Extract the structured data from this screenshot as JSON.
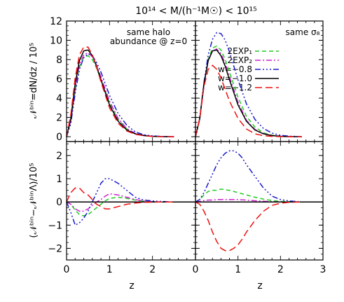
{
  "figure": {
    "title": "10¹⁴ < M/(h⁻¹M☉) < 10¹⁵",
    "xlabel": "z",
    "ylabel_top": "𝒩ᵇⁱⁿ=dN/dz / 10⁵",
    "ylabel_bottom": "(𝒩ᵇⁱⁿ−𝒩ᵇⁱⁿΛ)/10⁵",
    "left_annotation_line1": "same halo",
    "left_annotation_line2": "abundance @ z=0",
    "right_annotation": "same σ₈"
  },
  "legend": [
    {
      "name": "2EXP₁",
      "color": "#22cc22",
      "dash": "6,4"
    },
    {
      "name": "2EXP₂",
      "color": "#cc22cc",
      "dash": "8,3,2,3"
    },
    {
      "name": "w=−0.8",
      "color": "#1a1acc",
      "dash": "8,3,2,3,2,3,2,3"
    },
    {
      "name": "w=−1.0",
      "color": "#000000",
      "dash": ""
    },
    {
      "name": "w=−1.2",
      "color": "#ee1111",
      "dash": "10,5"
    }
  ],
  "chart_data": [
    {
      "type": "line",
      "title": "same halo abundance @ z=0",
      "ylabel": "𝒩ᵇⁱⁿ=dN/dz / 10⁵",
      "xlim": [
        0,
        3
      ],
      "ylim": [
        -0.5,
        12
      ],
      "x_ticks": [
        0,
        1,
        2
      ],
      "y_ticks": [
        0,
        2,
        4,
        6,
        8,
        10,
        12
      ],
      "series": [
        {
          "name": "2EXP₁",
          "x": [
            0,
            0.1,
            0.2,
            0.3,
            0.4,
            0.5,
            0.6,
            0.7,
            0.8,
            1.0,
            1.2,
            1.4,
            1.6,
            1.8,
            2.0,
            2.2,
            2.5
          ],
          "y": [
            0,
            1.6,
            4.8,
            7.2,
            8.2,
            8.4,
            8.0,
            7.1,
            5.9,
            3.5,
            1.8,
            0.8,
            0.35,
            0.15,
            0.05,
            0.02,
            0
          ]
        },
        {
          "name": "2EXP₂",
          "x": [
            0,
            0.1,
            0.2,
            0.3,
            0.4,
            0.5,
            0.6,
            0.7,
            0.8,
            1.0,
            1.2,
            1.4,
            1.6,
            1.8,
            2.0,
            2.2,
            2.5
          ],
          "y": [
            0,
            1.7,
            5.0,
            7.5,
            8.5,
            8.7,
            8.3,
            7.4,
            6.2,
            3.7,
            1.9,
            0.85,
            0.35,
            0.15,
            0.05,
            0.02,
            0
          ]
        },
        {
          "name": "w=−0.8",
          "x": [
            0,
            0.1,
            0.2,
            0.3,
            0.4,
            0.5,
            0.6,
            0.7,
            0.8,
            1.0,
            1.2,
            1.4,
            1.6,
            1.8,
            2.0,
            2.2,
            2.5
          ],
          "y": [
            0,
            1.4,
            4.5,
            7.0,
            8.2,
            8.6,
            8.4,
            7.7,
            6.7,
            4.3,
            2.4,
            1.2,
            0.5,
            0.2,
            0.08,
            0.03,
            0
          ]
        },
        {
          "name": "w=−1.0",
          "x": [
            0,
            0.1,
            0.2,
            0.3,
            0.4,
            0.5,
            0.6,
            0.7,
            0.8,
            1.0,
            1.2,
            1.4,
            1.6,
            1.8,
            2.0,
            2.2,
            2.5
          ],
          "y": [
            0,
            1.9,
            5.5,
            7.9,
            8.9,
            9.0,
            8.4,
            7.3,
            5.9,
            3.3,
            1.6,
            0.7,
            0.3,
            0.12,
            0.04,
            0.01,
            0
          ]
        },
        {
          "name": "w=−1.2",
          "x": [
            0,
            0.1,
            0.2,
            0.3,
            0.4,
            0.5,
            0.6,
            0.7,
            0.8,
            1.0,
            1.2,
            1.4,
            1.6,
            1.8,
            2.0,
            2.2,
            2.5
          ],
          "y": [
            0,
            2.3,
            6.1,
            8.5,
            9.3,
            9.3,
            8.5,
            7.2,
            5.7,
            3.0,
            1.4,
            0.6,
            0.25,
            0.1,
            0.03,
            0.01,
            0
          ]
        }
      ]
    },
    {
      "type": "line",
      "title": "same σ₈",
      "xlim": [
        0,
        3
      ],
      "ylim": [
        -0.5,
        12
      ],
      "y_ticks": [
        0,
        2,
        4,
        6,
        8,
        10,
        12
      ],
      "series": [
        {
          "name": "2EXP₁",
          "x": [
            0,
            0.1,
            0.2,
            0.3,
            0.4,
            0.5,
            0.6,
            0.7,
            0.8,
            1.0,
            1.2,
            1.4,
            1.6,
            1.8,
            2.0,
            2.2,
            2.5
          ],
          "y": [
            0,
            1.8,
            5.4,
            8.0,
            9.2,
            9.4,
            9.0,
            8.0,
            6.7,
            4.1,
            2.1,
            1.0,
            0.4,
            0.17,
            0.06,
            0.02,
            0
          ]
        },
        {
          "name": "2EXP₂",
          "x": [
            0,
            0.1,
            0.2,
            0.3,
            0.4,
            0.5,
            0.6,
            0.7,
            0.8,
            1.0,
            1.2,
            1.4,
            1.6,
            1.8,
            2.0,
            2.2,
            2.5
          ],
          "y": [
            0,
            1.8,
            5.3,
            7.9,
            8.9,
            9.1,
            8.6,
            7.6,
            6.2,
            3.6,
            1.7,
            0.75,
            0.32,
            0.13,
            0.05,
            0.02,
            0
          ]
        },
        {
          "name": "w=−0.8",
          "x": [
            0,
            0.1,
            0.2,
            0.3,
            0.4,
            0.5,
            0.6,
            0.7,
            0.8,
            1.0,
            1.2,
            1.4,
            1.6,
            1.8,
            2.0,
            2.2,
            2.5
          ],
          "y": [
            0,
            1.9,
            5.6,
            8.5,
            10.1,
            10.8,
            10.7,
            10.0,
            8.8,
            5.9,
            3.4,
            1.8,
            0.85,
            0.38,
            0.15,
            0.06,
            0
          ]
        },
        {
          "name": "w=−1.0",
          "x": [
            0,
            0.1,
            0.2,
            0.3,
            0.4,
            0.5,
            0.6,
            0.7,
            0.8,
            1.0,
            1.2,
            1.4,
            1.6,
            1.8,
            2.0,
            2.2,
            2.5
          ],
          "y": [
            0,
            1.9,
            5.5,
            7.9,
            8.9,
            9.0,
            8.4,
            7.3,
            5.9,
            3.3,
            1.6,
            0.7,
            0.3,
            0.12,
            0.04,
            0.01,
            0
          ]
        },
        {
          "name": "w=−1.2",
          "x": [
            0,
            0.1,
            0.2,
            0.3,
            0.4,
            0.5,
            0.6,
            0.7,
            0.8,
            1.0,
            1.2,
            1.4,
            1.6,
            1.8,
            2.0,
            2.2,
            2.5
          ],
          "y": [
            0,
            1.9,
            5.2,
            7.0,
            7.4,
            7.0,
            6.1,
            4.9,
            3.7,
            1.9,
            0.8,
            0.3,
            0.1,
            0.04,
            0.01,
            0,
            0
          ]
        }
      ]
    },
    {
      "type": "line",
      "ylabel": "(𝒩ᵇⁱⁿ−𝒩ᵇⁱⁿΛ)/10⁵",
      "xlabel": "z",
      "xlim": [
        0,
        3
      ],
      "ylim": [
        -2.5,
        2.6
      ],
      "x_ticks": [
        0,
        1,
        2
      ],
      "y_ticks": [
        -2,
        -1,
        0,
        1,
        2
      ],
      "series": [
        {
          "name": "2EXP₁",
          "x": [
            0,
            0.1,
            0.2,
            0.3,
            0.4,
            0.5,
            0.6,
            0.7,
            0.8,
            0.9,
            1.0,
            1.2,
            1.4,
            1.6,
            1.8,
            2.0,
            2.2,
            2.5
          ],
          "y": [
            0,
            -0.1,
            -0.35,
            -0.55,
            -0.6,
            -0.55,
            -0.4,
            -0.25,
            -0.1,
            0.05,
            0.15,
            0.2,
            0.15,
            0.08,
            0.03,
            0.01,
            0,
            0
          ]
        },
        {
          "name": "2EXP₂",
          "x": [
            0,
            0.1,
            0.2,
            0.3,
            0.4,
            0.5,
            0.6,
            0.7,
            0.8,
            0.9,
            1.0,
            1.2,
            1.4,
            1.6,
            1.8,
            2.0,
            2.2,
            2.5
          ],
          "y": [
            0,
            -0.1,
            -0.3,
            -0.4,
            -0.4,
            -0.3,
            -0.15,
            0,
            0.1,
            0.25,
            0.35,
            0.3,
            0.2,
            0.1,
            0.04,
            0.01,
            0,
            0
          ]
        },
        {
          "name": "w=−0.8",
          "x": [
            0,
            0.1,
            0.2,
            0.3,
            0.4,
            0.5,
            0.6,
            0.7,
            0.8,
            0.9,
            1.0,
            1.2,
            1.4,
            1.6,
            1.8,
            2.0,
            2.2,
            2.5
          ],
          "y": [
            0,
            -0.45,
            -1.0,
            -0.9,
            -0.7,
            -0.4,
            0.0,
            0.4,
            0.8,
            1.0,
            1.0,
            0.8,
            0.5,
            0.2,
            0.08,
            0.04,
            0.02,
            0
          ]
        },
        {
          "name": "w=−1.0",
          "x": [
            0,
            3
          ],
          "y": [
            0,
            0
          ]
        },
        {
          "name": "w=−1.2",
          "x": [
            0,
            0.1,
            0.2,
            0.3,
            0.4,
            0.5,
            0.6,
            0.7,
            0.8,
            0.9,
            1.0,
            1.2,
            1.4,
            1.6,
            1.8,
            2.0,
            2.2,
            2.5
          ],
          "y": [
            0,
            0.4,
            0.6,
            0.6,
            0.4,
            0.3,
            0.1,
            -0.1,
            -0.2,
            -0.3,
            -0.3,
            -0.2,
            -0.1,
            -0.05,
            -0.02,
            -0.01,
            0,
            0
          ]
        }
      ]
    },
    {
      "type": "line",
      "xlabel": "z",
      "xlim": [
        0,
        3
      ],
      "ylim": [
        -2.5,
        2.6
      ],
      "x_ticks": [
        0,
        1,
        2,
        3
      ],
      "y_ticks": [
        -2,
        -1,
        0,
        1,
        2
      ],
      "series": [
        {
          "name": "2EXP₁",
          "x": [
            0,
            0.1,
            0.2,
            0.3,
            0.4,
            0.5,
            0.6,
            0.8,
            1.0,
            1.2,
            1.4,
            1.6,
            1.8,
            2.0,
            2.2,
            2.5
          ],
          "y": [
            0,
            0.1,
            0.3,
            0.45,
            0.5,
            0.5,
            0.55,
            0.5,
            0.4,
            0.3,
            0.2,
            0.12,
            0.06,
            0.02,
            0.01,
            0
          ]
        },
        {
          "name": "2EXP₂",
          "x": [
            0,
            0.1,
            0.2,
            0.3,
            0.4,
            0.5,
            0.6,
            0.8,
            1.0,
            1.2,
            1.4,
            1.6,
            1.8,
            2.0,
            2.2,
            2.5
          ],
          "y": [
            0,
            0.02,
            0.06,
            0.08,
            0.08,
            0.1,
            0.1,
            0.1,
            0.1,
            0.08,
            0.05,
            0.03,
            0.01,
            0,
            0,
            0
          ]
        },
        {
          "name": "w=−0.8",
          "x": [
            0,
            0.1,
            0.2,
            0.3,
            0.4,
            0.5,
            0.6,
            0.7,
            0.8,
            0.9,
            1.0,
            1.1,
            1.2,
            1.4,
            1.6,
            1.8,
            2.0,
            2.2,
            2.5
          ],
          "y": [
            0,
            0.1,
            0.4,
            0.8,
            1.2,
            1.6,
            1.9,
            2.1,
            2.2,
            2.2,
            2.1,
            1.9,
            1.6,
            1.1,
            0.6,
            0.25,
            0.1,
            0.04,
            0
          ]
        },
        {
          "name": "w=−1.0",
          "x": [
            0,
            3
          ],
          "y": [
            0,
            0
          ]
        },
        {
          "name": "w=−1.2",
          "x": [
            0,
            0.1,
            0.2,
            0.3,
            0.4,
            0.5,
            0.6,
            0.7,
            0.8,
            0.9,
            1.0,
            1.1,
            1.2,
            1.4,
            1.6,
            1.8,
            2.0,
            2.2,
            2.5
          ],
          "y": [
            0,
            -0.1,
            -0.4,
            -0.8,
            -1.3,
            -1.7,
            -2.0,
            -2.1,
            -2.1,
            -2.0,
            -1.85,
            -1.6,
            -1.3,
            -0.8,
            -0.4,
            -0.15,
            -0.06,
            -0.02,
            0
          ]
        }
      ]
    }
  ]
}
